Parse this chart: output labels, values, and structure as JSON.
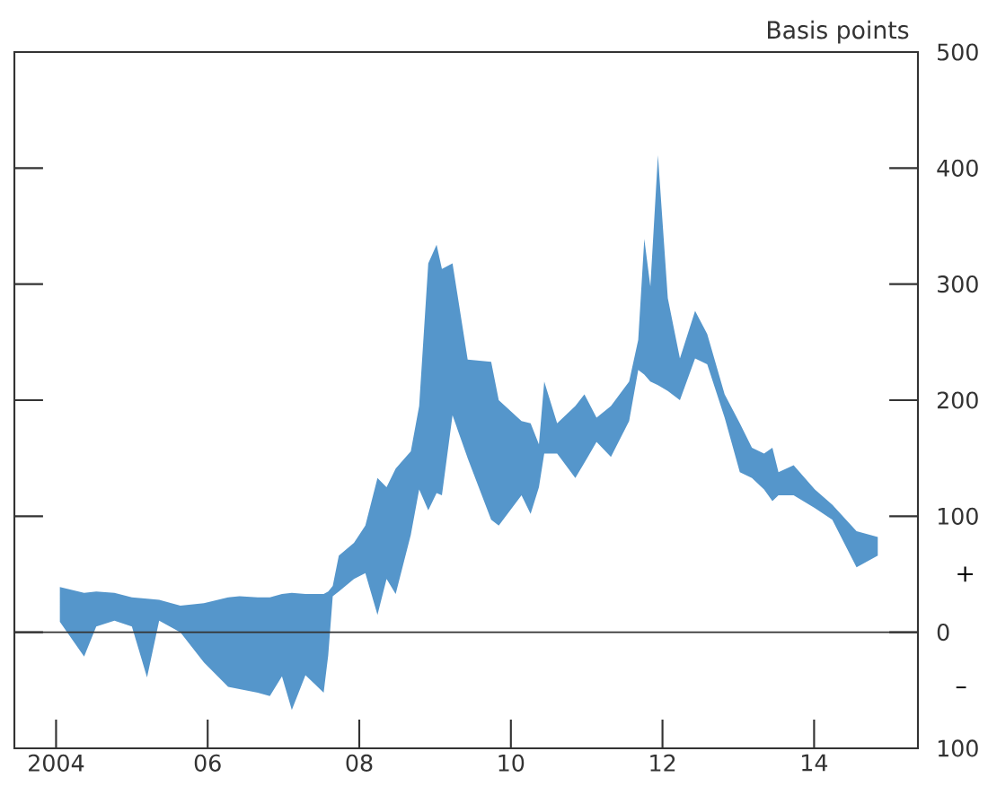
{
  "chart_data": {
    "type": "area",
    "ylabel": "Basis points",
    "x": [
      2004.05,
      2004.37,
      2004.53,
      2004.77,
      2005.0,
      2005.2,
      2005.36,
      2005.64,
      2005.95,
      2006.27,
      2006.42,
      2006.66,
      2006.82,
      2006.98,
      2007.11,
      2007.29,
      2007.53,
      2007.59,
      2007.65,
      2007.73,
      2007.93,
      2008.08,
      2008.24,
      2008.36,
      2008.48,
      2008.68,
      2008.79,
      2008.91,
      2009.02,
      2009.09,
      2009.23,
      2009.43,
      2009.74,
      2009.84,
      2010.14,
      2010.26,
      2010.37,
      2010.44,
      2010.61,
      2010.85,
      2010.97,
      2011.13,
      2011.32,
      2011.56,
      2011.68,
      2011.76,
      2011.84,
      2011.94,
      2012.07,
      2012.23,
      2012.43,
      2012.59,
      2012.82,
      2013.02,
      2013.18,
      2013.34,
      2013.45,
      2013.53,
      2013.73,
      2014.01,
      2014.24,
      2014.56,
      2014.84
    ],
    "series": [
      {
        "color": "#5596cb",
        "values": [
          null,
          null,
          null,
          null,
          null,
          null,
          null,
          null,
          null,
          null,
          null,
          null,
          null,
          null,
          null,
          null,
          null,
          null,
          null,
          null,
          null,
          null,
          null,
          null,
          null,
          null,
          null,
          null,
          null,
          null,
          null,
          null,
          null,
          null,
          null,
          null,
          null,
          null,
          null,
          null,
          null,
          null,
          null,
          null,
          null,
          null,
          null,
          null,
          null,
          null,
          null,
          null,
          null,
          null,
          null,
          null,
          null,
          null,
          null,
          null,
          null,
          null,
          null
        ],
        "upper": [
          39,
          34,
          35,
          34,
          30,
          29,
          28,
          23,
          25,
          30,
          31,
          30,
          30,
          33,
          34,
          33,
          33,
          35,
          40,
          66,
          77,
          92,
          133,
          125,
          141,
          156,
          195,
          318,
          334,
          313,
          318,
          235,
          233,
          200,
          182,
          180,
          162,
          216,
          180,
          195,
          205,
          185,
          195,
          216,
          252,
          339,
          298,
          411,
          288,
          236,
          277,
          257,
          205,
          180,
          159,
          154,
          159,
          138,
          144,
          123,
          110,
          87,
          82
        ],
        "lower": [
          9,
          -21,
          5,
          10,
          5,
          -39,
          10,
          0,
          -26,
          -47,
          -49,
          -52,
          -55,
          -38,
          -67,
          -37,
          -52,
          -20,
          31,
          35,
          46,
          51,
          15,
          46,
          33,
          84,
          123,
          105,
          120,
          118,
          187,
          150,
          97,
          92,
          118,
          102,
          125,
          154,
          154,
          133,
          146,
          164,
          151,
          182,
          226,
          222,
          216,
          213,
          208,
          200,
          236,
          231,
          185,
          138,
          133,
          123,
          113,
          118,
          118,
          107,
          97,
          56,
          66
        ]
      }
    ],
    "xlim": [
      2003.45,
      2015.37
    ],
    "ylim": [
      -100,
      500
    ],
    "xticks": [
      2004,
      {
        "value": 2006,
        "label": "06"
      },
      {
        "value": 2008,
        "label": "08"
      },
      {
        "value": 2010,
        "label": "10"
      },
      {
        "value": 2012,
        "label": "12"
      },
      {
        "value": 2014,
        "label": "14"
      }
    ],
    "yticks": [
      {
        "value": -100,
        "label": "100"
      },
      0,
      100,
      200,
      300,
      400,
      500
    ],
    "ref_lines": [
      {
        "axis": "y",
        "value": 0,
        "color": "#333333"
      }
    ],
    "annotations": [
      "+",
      "–"
    ]
  }
}
